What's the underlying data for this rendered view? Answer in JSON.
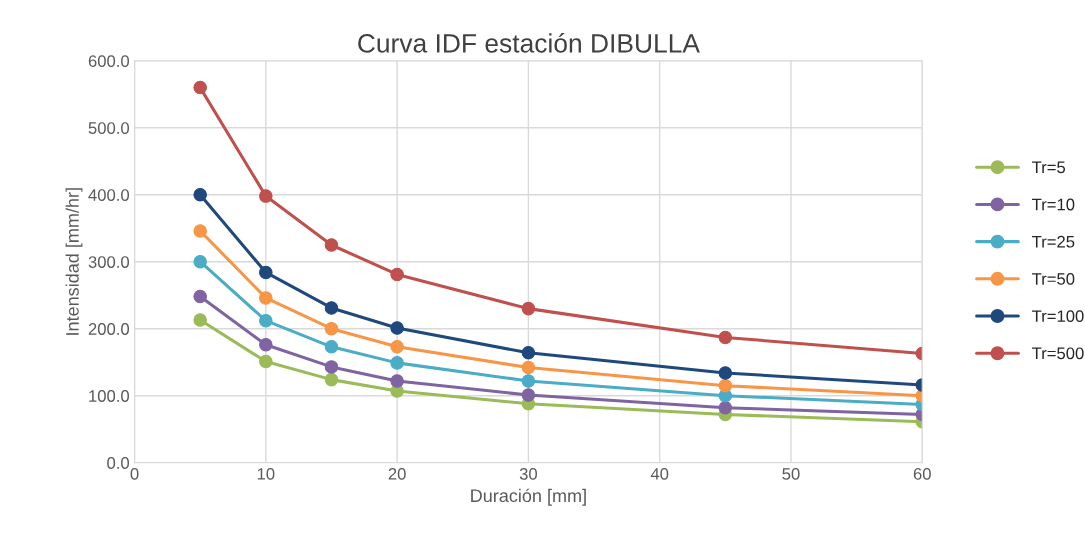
{
  "chart_data": {
    "type": "line",
    "title": "Curva IDF estación DIBULLA",
    "xlabel": "Duración [mm]",
    "ylabel": "Intensidad [mm/hr]",
    "x": [
      5,
      10,
      15,
      20,
      30,
      45,
      60
    ],
    "series": [
      {
        "name": "Tr=5",
        "color": "#9bbb59",
        "values": [
          213,
          151,
          124,
          107,
          88,
          72,
          61
        ]
      },
      {
        "name": "Tr=10",
        "color": "#8064a2",
        "values": [
          248,
          176,
          143,
          122,
          101,
          82,
          72
        ]
      },
      {
        "name": "Tr=25",
        "color": "#4bacc6",
        "values": [
          300,
          212,
          173,
          149,
          122,
          100,
          87
        ]
      },
      {
        "name": "Tr=50",
        "color": "#f79646",
        "values": [
          346,
          246,
          200,
          173,
          142,
          115,
          100
        ]
      },
      {
        "name": "Tr=100",
        "color": "#1f497d",
        "values": [
          400,
          284,
          231,
          201,
          164,
          134,
          116
        ]
      },
      {
        "name": "Tr=500",
        "color": "#c0504d",
        "values": [
          560,
          398,
          325,
          281,
          230,
          187,
          163
        ]
      }
    ],
    "xlim": [
      0,
      60
    ],
    "xticks": [
      0,
      10,
      20,
      30,
      40,
      50,
      60
    ],
    "ylim": [
      0,
      600
    ],
    "yticks": [
      {
        "value": 0,
        "label": "0.0"
      },
      {
        "value": 100,
        "label": "100.0"
      },
      {
        "value": 200,
        "label": "200.0"
      },
      {
        "value": 300,
        "label": "300.0"
      },
      {
        "value": 400,
        "label": "400.0"
      },
      {
        "value": 500,
        "label": "500.0"
      },
      {
        "value": 600,
        "label": "600.0"
      }
    ],
    "grid": true,
    "legend": "right",
    "marker": "circle",
    "line_style": "solid"
  }
}
